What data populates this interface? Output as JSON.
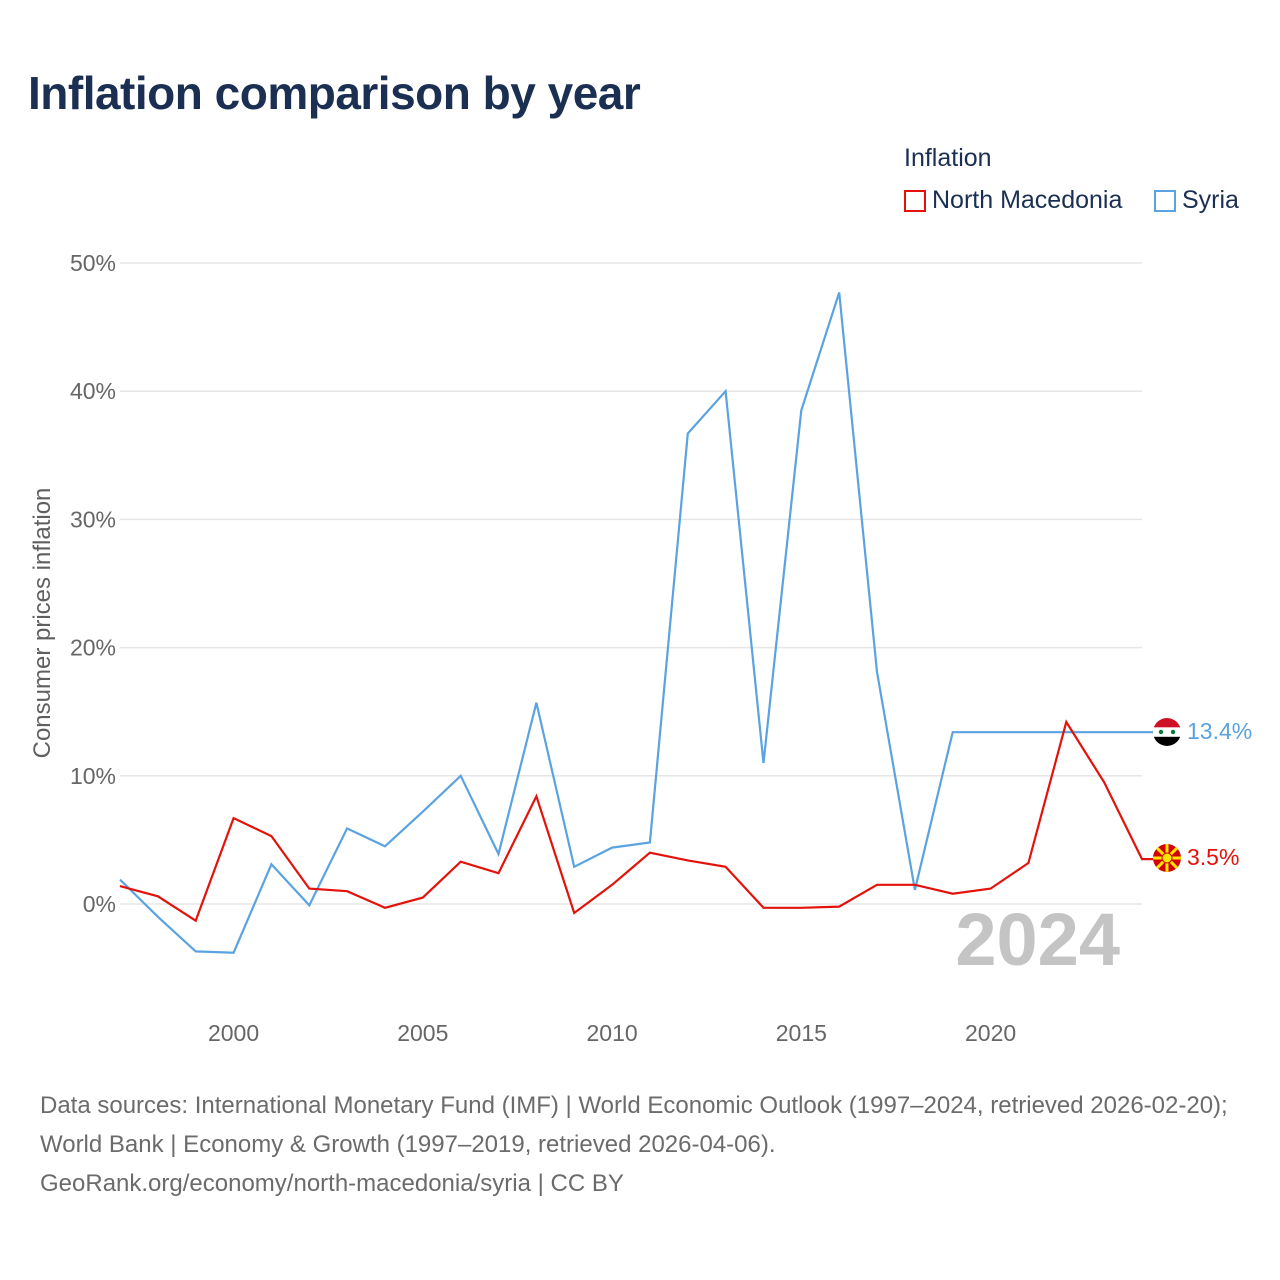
{
  "title": "Inflation comparison by year",
  "legend": {
    "title": "Inflation",
    "items": [
      {
        "label": "North Macedonia",
        "color": "#e3120b"
      },
      {
        "label": "Syria",
        "color": "#5aa3e0"
      }
    ]
  },
  "chart_data": {
    "type": "line",
    "title": "Inflation comparison by year",
    "xlabel": "",
    "ylabel": "Consumer prices inflation",
    "ylim": [
      -8,
      52
    ],
    "xlim": [
      1997,
      2024
    ],
    "y_ticks": [
      0,
      10,
      20,
      30,
      40,
      50
    ],
    "y_tick_labels": [
      "0%",
      "10%",
      "20%",
      "30%",
      "40%",
      "50%"
    ],
    "x_ticks": [
      2000,
      2005,
      2010,
      2015,
      2020
    ],
    "x_tick_labels": [
      "2000",
      "2005",
      "2010",
      "2015",
      "2020"
    ],
    "grid": true,
    "year_label": "2024",
    "x": [
      1997,
      1998,
      1999,
      2000,
      2001,
      2002,
      2003,
      2004,
      2005,
      2006,
      2007,
      2008,
      2009,
      2010,
      2011,
      2012,
      2013,
      2014,
      2015,
      2016,
      2017,
      2018,
      2019,
      2020,
      2021,
      2022,
      2023,
      2024
    ],
    "series": [
      {
        "name": "North Macedonia",
        "color": "#e3120b",
        "end_label": "3.5%",
        "values": [
          1.4,
          0.6,
          -1.3,
          6.7,
          5.3,
          1.2,
          1.0,
          -0.3,
          0.5,
          3.3,
          2.4,
          8.4,
          -0.7,
          1.5,
          4.0,
          3.4,
          2.9,
          -0.3,
          -0.3,
          -0.2,
          1.5,
          1.5,
          0.8,
          1.2,
          3.2,
          14.2,
          9.5,
          3.5
        ]
      },
      {
        "name": "Syria",
        "color": "#5aa3e0",
        "end_label": "13.4%",
        "values": [
          1.9,
          -1.0,
          -3.7,
          -3.8,
          3.1,
          -0.1,
          5.9,
          4.5,
          7.2,
          10.0,
          3.9,
          15.7,
          2.9,
          4.4,
          4.8,
          36.7,
          40.0,
          11.0,
          38.5,
          47.7,
          18.1,
          1.1,
          13.4,
          13.4,
          13.4,
          13.4,
          13.4,
          13.4
        ]
      }
    ]
  },
  "footer": {
    "line1": "Data sources: International Monetary Fund (IMF) | World Economic Outlook (1997–2024, retrieved 2026-02-20); World Bank | Economy & Growth (1997–2019, retrieved 2026-04-06).",
    "line2": "GeoRank.org/economy/north-macedonia/syria | CC BY"
  },
  "flags": [
    {
      "name": "syria-flag-icon",
      "colors": [
        "#ce1126",
        "#ffffff",
        "#000000",
        "#007a3d"
      ]
    },
    {
      "name": "north-macedonia-flag-icon",
      "colors": [
        "#d20000",
        "#ffe600"
      ]
    }
  ]
}
